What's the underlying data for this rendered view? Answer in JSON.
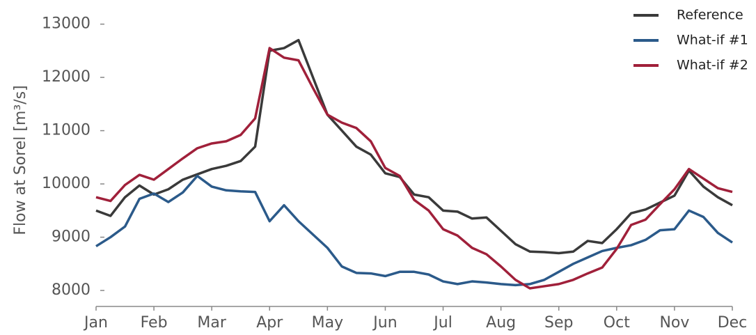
{
  "chart_data": {
    "type": "line",
    "ylabel": "Flow at Sorel [m³/s]",
    "x": [
      0,
      0.25,
      0.5,
      0.75,
      1,
      1.25,
      1.5,
      1.75,
      2,
      2.25,
      2.5,
      2.75,
      3,
      3.25,
      3.5,
      3.75,
      4,
      4.25,
      4.5,
      4.75,
      5,
      5.25,
      5.5,
      5.75,
      6,
      6.25,
      6.5,
      6.75,
      7,
      7.25,
      7.5,
      7.75,
      8,
      8.25,
      8.5,
      8.75,
      9,
      9.25,
      9.5,
      9.75,
      10,
      10.25,
      10.5,
      10.75,
      11
    ],
    "xlim": [
      0,
      11
    ],
    "xticks": [
      {
        "value": 0,
        "label": "Jan"
      },
      {
        "value": 1,
        "label": "Feb"
      },
      {
        "value": 2,
        "label": "Mar"
      },
      {
        "value": 3,
        "label": "Apr"
      },
      {
        "value": 4,
        "label": "May"
      },
      {
        "value": 5,
        "label": "Jun"
      },
      {
        "value": 6,
        "label": "Jul"
      },
      {
        "value": 7,
        "label": "Aug"
      },
      {
        "value": 8,
        "label": "Sep"
      },
      {
        "value": 9,
        "label": "Oct"
      },
      {
        "value": 10,
        "label": "Nov"
      },
      {
        "value": 11,
        "label": "Dec"
      }
    ],
    "ylim": [
      7700,
      13100
    ],
    "yticks": [
      8000,
      9000,
      10000,
      11000,
      12000,
      13000
    ],
    "legend": "upper right",
    "series": [
      {
        "name": "Reference",
        "color": "#3a3a3a",
        "values": [
          9500,
          9400,
          9750,
          9970,
          9800,
          9900,
          10080,
          10180,
          10280,
          10340,
          10430,
          10700,
          12500,
          12550,
          12700,
          12000,
          11300,
          11000,
          10700,
          10550,
          10200,
          10130,
          9800,
          9750,
          9500,
          9480,
          9350,
          9370,
          9120,
          8870,
          8730,
          8720,
          8700,
          8730,
          8930,
          8890,
          9150,
          9450,
          9520,
          9650,
          9780,
          10250,
          9950,
          9750,
          9600
        ]
      },
      {
        "name": "What-if #1",
        "color": "#2b5a8a",
        "values": [
          8830,
          9000,
          9200,
          9720,
          9820,
          9660,
          9840,
          10150,
          9950,
          9880,
          9860,
          9850,
          9300,
          9600,
          9300,
          9050,
          8800,
          8450,
          8330,
          8320,
          8270,
          8350,
          8350,
          8300,
          8170,
          8120,
          8170,
          8150,
          8120,
          8100,
          8120,
          8200,
          8350,
          8500,
          8620,
          8740,
          8800,
          8850,
          8950,
          9130,
          9150,
          9500,
          9380,
          9080,
          8900
        ]
      },
      {
        "name": "What-if #2",
        "color": "#a0203a",
        "values": [
          9750,
          9680,
          9980,
          10170,
          10080,
          10280,
          10480,
          10670,
          10760,
          10800,
          10920,
          11230,
          12550,
          12370,
          12320,
          11800,
          11300,
          11150,
          11050,
          10800,
          10300,
          10150,
          9700,
          9500,
          9150,
          9030,
          8800,
          8680,
          8450,
          8200,
          8040,
          8080,
          8120,
          8200,
          8320,
          8430,
          8780,
          9230,
          9330,
          9620,
          9900,
          10280,
          10100,
          9920,
          9850
        ]
      }
    ]
  }
}
